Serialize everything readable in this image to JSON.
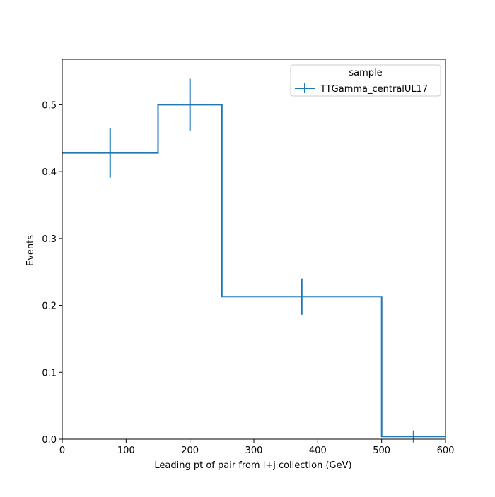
{
  "chart_data": {
    "type": "histogram-step",
    "title": "",
    "xlabel": "Leading pt of pair from l+j collection (GeV)",
    "ylabel": "Events",
    "xlim": [
      0,
      600
    ],
    "ylim": [
      0,
      0.568
    ],
    "xticks": [
      0,
      100,
      200,
      300,
      400,
      500,
      600
    ],
    "yticks": [
      0.0,
      0.1,
      0.2,
      0.3,
      0.4,
      0.5
    ],
    "xtick_labels": [
      "0",
      "100",
      "200",
      "300",
      "400",
      "500",
      "600"
    ],
    "ytick_labels": [
      "0.0",
      "0.1",
      "0.2",
      "0.3",
      "0.4",
      "0.5"
    ],
    "bin_edges": [
      0,
      150,
      250,
      500,
      600
    ],
    "series": [
      {
        "name": "TTGamma_centralUL17",
        "color": "#1f77b4",
        "values": [
          0.428,
          0.5,
          0.213,
          0.004
        ],
        "errors": [
          0.037,
          0.039,
          0.027,
          0.009
        ]
      }
    ],
    "legend": {
      "title": "sample",
      "placement": "top-right"
    },
    "grid": false
  }
}
